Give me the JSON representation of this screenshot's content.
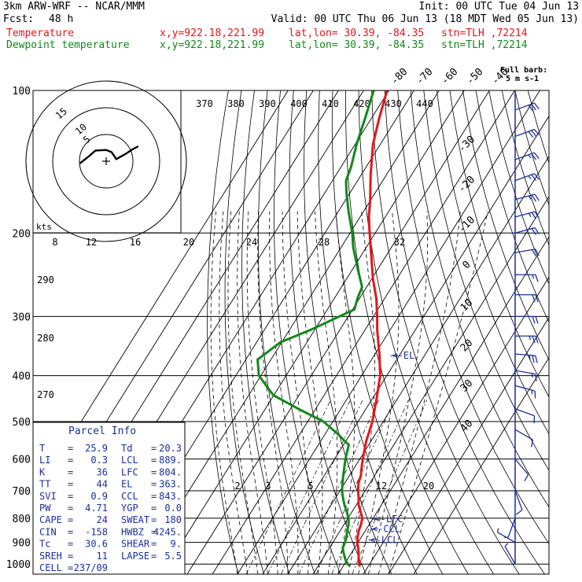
{
  "header": {
    "model": "3km ARW-WRF -- NCAR/MMM",
    "fcst_label": "Fcst:",
    "fcst_value": "48 h",
    "init": "Init: 00 UTC Tue 04 Jun 13",
    "valid": "Valid: 00 UTC Thu 06 Jun 13 (18 MDT Wed 05 Jun 13)",
    "lines": [
      {
        "label": "Temperature",
        "xy": "x,y=922.18,221.99",
        "latlon": "lat,lon= 30.39, -84.35",
        "stn": "stn=TLH ,72214"
      },
      {
        "label": "Dewpoint temperature",
        "xy": "x,y=922.18,221.99",
        "latlon": "lat,lon= 30.39, -84.35",
        "stn": "stn=TLH ,72214"
      }
    ]
  },
  "barb_legend": [
    "Full barb:",
    "5 m s-1"
  ],
  "hodograph": {
    "units": "kts",
    "ring_labels": [
      "5",
      "10",
      "15"
    ]
  },
  "parcel_info": {
    "title": "Parcel Info",
    "rows": [
      {
        "l1": "T",
        "v1": "25.9",
        "l2": "Td",
        "v2": "20.3"
      },
      {
        "l1": "LI",
        "v1": "0.3",
        "l2": "LCL",
        "v2": "889."
      },
      {
        "l1": "K",
        "v1": "36",
        "l2": "LFC",
        "v2": "804."
      },
      {
        "l1": "TT",
        "v1": "44",
        "l2": "EL",
        "v2": "363."
      },
      {
        "l1": "SVI",
        "v1": "0.9",
        "l2": "CCL",
        "v2": "843."
      },
      {
        "l1": "PW",
        "v1": "4.71",
        "l2": "YGP",
        "v2": "0.0"
      },
      {
        "l1": "CAPE",
        "v1": "24",
        "l2": "SWEAT",
        "v2": "180"
      },
      {
        "l1": "CIN",
        "v1": "-158",
        "l2": "HWBZ",
        "v2": "4245."
      },
      {
        "l1": "Tc",
        "v1": "30.6",
        "l2": "SHEAR",
        "v2": "9."
      },
      {
        "l1": "SREH",
        "v1": "11",
        "l2": "LAPSE",
        "v2": "5.5"
      },
      {
        "l1": "CELL",
        "v1": "237/09",
        "l2": "",
        "v2": ""
      }
    ]
  },
  "chart_data": {
    "type": "line",
    "pressure_levels": [
      100,
      200,
      300,
      400,
      500,
      600,
      700,
      800,
      900,
      1000
    ],
    "pressure_labels": [
      "100",
      "200",
      "300",
      "400",
      "500",
      "600",
      "700",
      "800",
      "900",
      "1000"
    ],
    "isotherm_labels": [
      "-80",
      "-70",
      "-60",
      "-50",
      "-40",
      "-30",
      "-20",
      "-10",
      "0",
      "10",
      "20",
      "30",
      "40"
    ],
    "theta_e_labels": [
      "370",
      "380",
      "390",
      "400",
      "410",
      "420",
      "430",
      "440"
    ],
    "mixing_ratio_labels": [
      "8",
      "12",
      "16",
      "20",
      "24",
      "28",
      "32"
    ],
    "mixing_ratio_labels_low": [
      "2",
      "3",
      "5",
      "12",
      "20"
    ],
    "dry_adiabat_labels": [
      "290",
      "280",
      "270"
    ],
    "level_markers": [
      {
        "label": "EL",
        "p": 363
      },
      {
        "label": "LFC",
        "p": 804
      },
      {
        "label": "CCL",
        "p": 843
      },
      {
        "label": "LCL",
        "p": 889
      }
    ],
    "series": [
      {
        "name": "Temperature",
        "color": "#e8141b",
        "points": [
          [
            1010,
            26.3
          ],
          [
            995,
            25.6
          ],
          [
            975,
            24.3
          ],
          [
            950,
            23.0
          ],
          [
            925,
            21.5
          ],
          [
            900,
            19.7
          ],
          [
            875,
            18.4
          ],
          [
            850,
            17.4
          ],
          [
            825,
            16.7
          ],
          [
            800,
            15.7
          ],
          [
            775,
            13.4
          ],
          [
            750,
            10.9
          ],
          [
            725,
            9.2
          ],
          [
            700,
            7.2
          ],
          [
            675,
            5.5
          ],
          [
            650,
            4.5
          ],
          [
            625,
            2.8
          ],
          [
            600,
            1.2
          ],
          [
            550,
            -1.9
          ],
          [
            500,
            -4.3
          ],
          [
            450,
            -8.1
          ],
          [
            400,
            -12.6
          ],
          [
            360,
            -18.3
          ],
          [
            320,
            -25.2
          ],
          [
            300,
            -28.5
          ],
          [
            275,
            -33.3
          ],
          [
            250,
            -39.5
          ],
          [
            225,
            -45.5
          ],
          [
            200,
            -52.2
          ],
          [
            185,
            -56.5
          ],
          [
            170,
            -60.3
          ],
          [
            150,
            -66.5
          ],
          [
            130,
            -72.9
          ],
          [
            115,
            -76.8
          ],
          [
            100,
            -80.7
          ]
        ]
      },
      {
        "name": "Dewpoint temperature",
        "color": "#12891a",
        "points": [
          [
            1010,
            22.5
          ],
          [
            995,
            20.8
          ],
          [
            975,
            19.0
          ],
          [
            950,
            17.1
          ],
          [
            925,
            15.3
          ],
          [
            900,
            14.8
          ],
          [
            875,
            14.0
          ],
          [
            850,
            12.8
          ],
          [
            825,
            11.8
          ],
          [
            800,
            10.2
          ],
          [
            775,
            7.9
          ],
          [
            750,
            5.3
          ],
          [
            725,
            3.0
          ],
          [
            700,
            0.8
          ],
          [
            650,
            -2.5
          ],
          [
            600,
            -5.7
          ],
          [
            560,
            -7.9
          ],
          [
            530,
            -15.3
          ],
          [
            500,
            -23.8
          ],
          [
            470,
            -36.9
          ],
          [
            440,
            -50.2
          ],
          [
            400,
            -60.8
          ],
          [
            370,
            -65.3
          ],
          [
            340,
            -60.5
          ],
          [
            320,
            -51.5
          ],
          [
            300,
            -43.5
          ],
          [
            290,
            -39.3
          ],
          [
            275,
            -40.8
          ],
          [
            260,
            -41.8
          ],
          [
            240,
            -47.5
          ],
          [
            215,
            -55.0
          ],
          [
            200,
            -59.1
          ],
          [
            180,
            -66.0
          ],
          [
            163,
            -71.9
          ],
          [
            155,
            -74.6
          ],
          [
            145,
            -76.0
          ],
          [
            130,
            -79.4
          ],
          [
            115,
            -82.4
          ],
          [
            100,
            -86.0
          ]
        ]
      }
    ],
    "wind_barbs_kt": [
      {
        "p": 110,
        "dir": 250,
        "spd": 30
      },
      {
        "p": 125,
        "dir": 250,
        "spd": 30
      },
      {
        "p": 140,
        "dir": 250,
        "spd": 25
      },
      {
        "p": 155,
        "dir": 250,
        "spd": 25
      },
      {
        "p": 170,
        "dir": 255,
        "spd": 25
      },
      {
        "p": 185,
        "dir": 255,
        "spd": 25
      },
      {
        "p": 200,
        "dir": 255,
        "spd": 20
      },
      {
        "p": 220,
        "dir": 260,
        "spd": 20
      },
      {
        "p": 245,
        "dir": 270,
        "spd": 15
      },
      {
        "p": 270,
        "dir": 270,
        "spd": 20
      },
      {
        "p": 300,
        "dir": 270,
        "spd": 20
      },
      {
        "p": 330,
        "dir": 270,
        "spd": 25
      },
      {
        "p": 360,
        "dir": 275,
        "spd": 25
      },
      {
        "p": 390,
        "dir": 280,
        "spd": 15
      },
      {
        "p": 420,
        "dir": 285,
        "spd": 15
      },
      {
        "p": 470,
        "dir": 290,
        "spd": 10
      },
      {
        "p": 520,
        "dir": 300,
        "spd": 10
      },
      {
        "p": 600,
        "dir": 320,
        "spd": 10
      },
      {
        "p": 700,
        "dir": 340,
        "spd": 10
      },
      {
        "p": 800,
        "dir": 20,
        "spd": 5
      },
      {
        "p": 900,
        "dir": 120,
        "spd": 5
      },
      {
        "p": 1000,
        "dir": 150,
        "spd": 5
      }
    ],
    "hodograph_trace": [
      [
        -4.9,
        -0.4
      ],
      [
        -3.4,
        0.8
      ],
      [
        -2.0,
        2.0
      ],
      [
        0.0,
        2.1
      ],
      [
        1.0,
        1.7
      ],
      [
        1.9,
        0.4
      ],
      [
        3.5,
        1.3
      ],
      [
        4.9,
        2.2
      ],
      [
        6.0,
        2.8
      ]
    ]
  },
  "colors": {
    "temperature": "#e8141b",
    "dewpoint": "#12891a",
    "parcel_text": "#1c2f9c",
    "barbs": "#1c2f9c"
  }
}
